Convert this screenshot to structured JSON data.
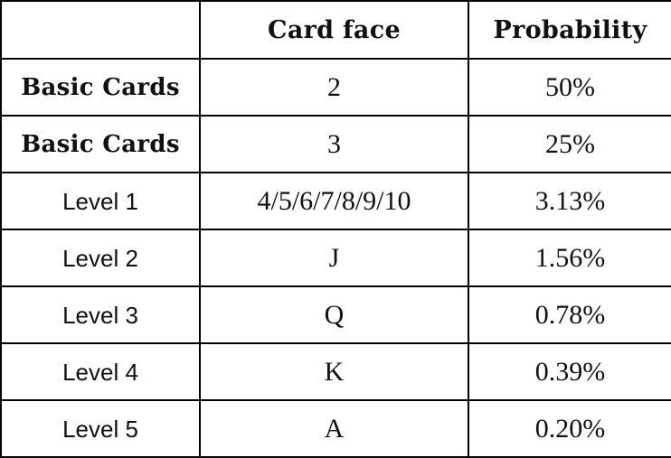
{
  "table": {
    "headers": [
      "",
      "Card face",
      "Probability"
    ],
    "rows": [
      {
        "category": "Basic Cards",
        "card_face": "2",
        "probability": "50%"
      },
      {
        "category": "Basic Cards",
        "card_face": "3",
        "probability": "25%"
      },
      {
        "category": "Level 1",
        "card_face": "4/5/6/7/8/9/10",
        "probability": "3.13%"
      },
      {
        "category": "Level 2",
        "card_face": "J",
        "probability": "1.56%"
      },
      {
        "category": "Level 3",
        "card_face": "Q",
        "probability": "0.78%"
      },
      {
        "category": "Level 4",
        "card_face": "K",
        "probability": "0.39%"
      },
      {
        "category": "Level 5",
        "card_face": "A",
        "probability": "0.20%"
      }
    ]
  }
}
